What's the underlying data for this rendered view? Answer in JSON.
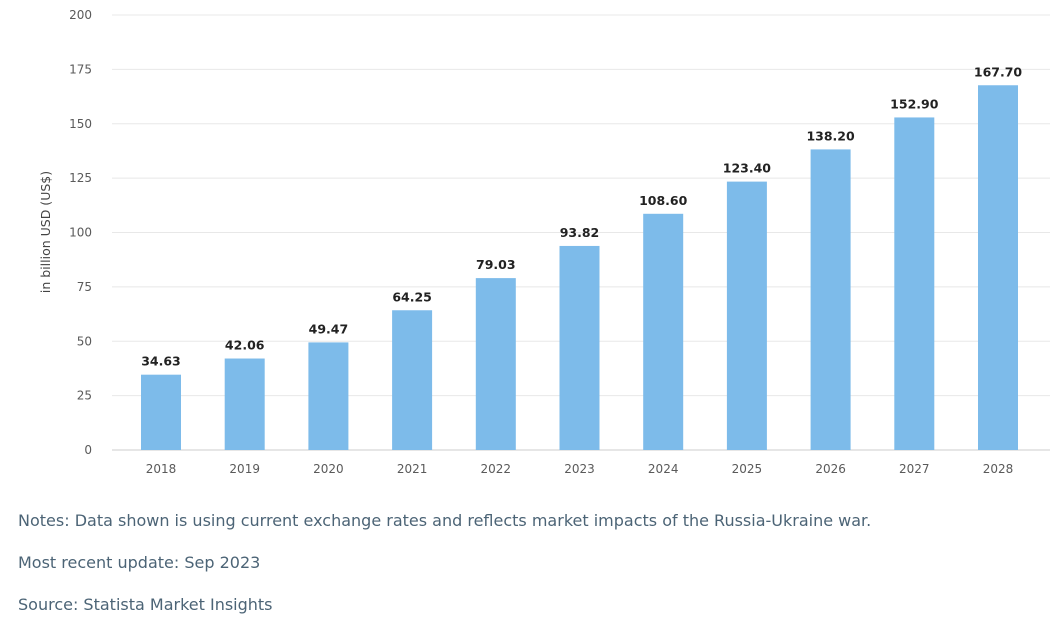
{
  "chart_data": {
    "type": "bar",
    "categories": [
      "2018",
      "2019",
      "2020",
      "2021",
      "2022",
      "2023",
      "2024",
      "2025",
      "2026",
      "2027",
      "2028"
    ],
    "values": [
      34.63,
      42.06,
      49.47,
      64.25,
      79.03,
      93.82,
      108.6,
      123.4,
      138.2,
      152.9,
      167.7
    ],
    "value_labels": [
      "34.63",
      "42.06",
      "49.47",
      "64.25",
      "79.03",
      "93.82",
      "108.60",
      "123.40",
      "138.20",
      "152.90",
      "167.70"
    ],
    "ylabel": "in billion USD (US$)",
    "ylim": [
      0,
      200
    ],
    "yticks": [
      "0",
      "25",
      "50",
      "75",
      "100",
      "125",
      "150",
      "175",
      "200"
    ],
    "grid": true,
    "bar_color": "#7dbbea"
  },
  "notes": {
    "note_text": "Notes: Data shown is using current exchange rates and reflects market impacts of the Russia-Ukraine war.",
    "update_text": "Most recent update: Sep 2023",
    "source_text": "Source: Statista Market Insights"
  }
}
